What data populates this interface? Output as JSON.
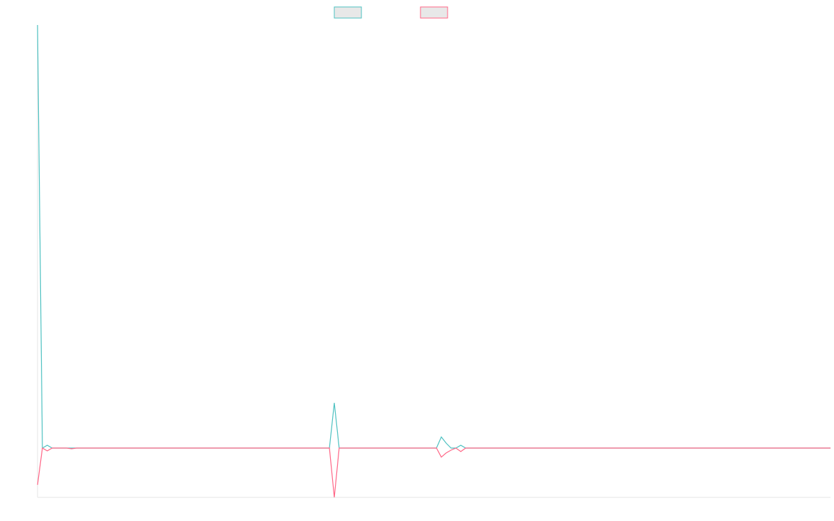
{
  "chart_data": {
    "type": "line",
    "x": [
      0,
      1,
      2,
      3,
      6,
      7,
      8,
      60,
      61,
      62,
      82,
      83,
      84,
      85,
      86,
      87,
      88,
      163
    ],
    "xlim": [
      0,
      163
    ],
    "ylim": [
      -71,
      609
    ],
    "series": [
      {
        "color": "#4bc0c0",
        "values": [
          609,
          0,
          4,
          0,
          0,
          0,
          0,
          0,
          65,
          0,
          0,
          16,
          7,
          0,
          0,
          4,
          0,
          0
        ]
      },
      {
        "color": "#ff6384",
        "values": [
          -53,
          0,
          -4,
          0,
          0,
          -1,
          0,
          0,
          -71,
          0,
          0,
          -13,
          -7,
          -3,
          0,
          -5,
          0,
          0
        ]
      }
    ]
  }
}
